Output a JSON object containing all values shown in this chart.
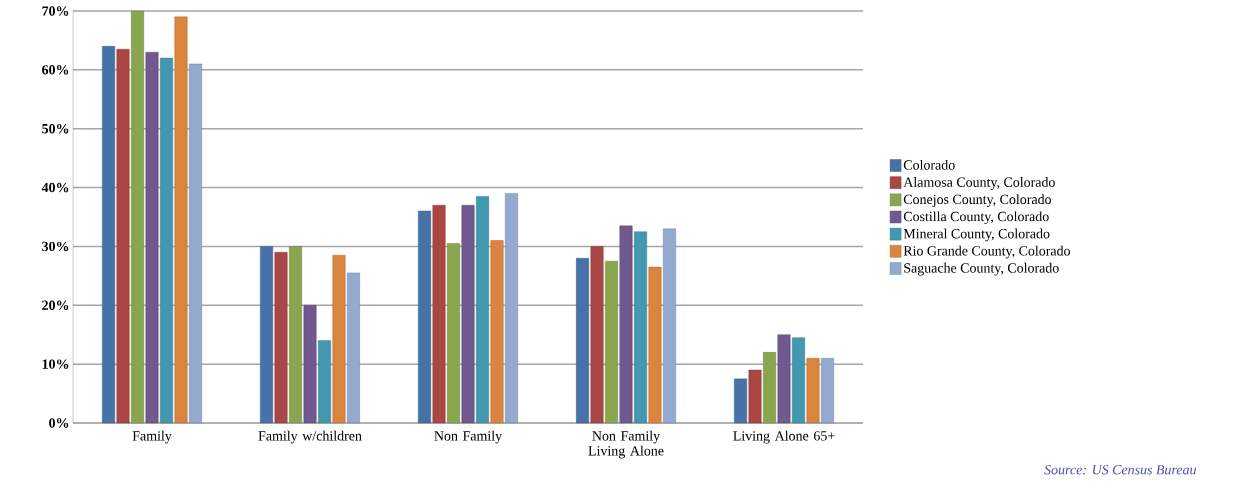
{
  "chart_data": {
    "type": "bar",
    "categories": [
      "Family",
      "Family w/children",
      "Non Family",
      "Non Family Living Alone",
      "Living Alone 65+"
    ],
    "series": [
      {
        "name": "Colorado",
        "color": "#4672a8",
        "values": [
          64,
          30,
          36,
          28,
          7.5
        ]
      },
      {
        "name": "Alamosa County, Colorado",
        "color": "#aa4643",
        "values": [
          63.5,
          29,
          37,
          30,
          9
        ]
      },
      {
        "name": "Conejos County, Colorado",
        "color": "#89a54e",
        "values": [
          70,
          30,
          30.5,
          27.5,
          12
        ]
      },
      {
        "name": "Costilla County, Colorado",
        "color": "#71588f",
        "values": [
          63,
          20,
          37,
          33.5,
          15
        ]
      },
      {
        "name": "Mineral County, Colorado",
        "color": "#4198af",
        "values": [
          62,
          14,
          38.5,
          32.5,
          14.5
        ]
      },
      {
        "name": "Rio Grande County, Colorado",
        "color": "#db843d",
        "values": [
          69,
          28.5,
          31,
          26.5,
          11
        ]
      },
      {
        "name": "Saguache County, Colorado",
        "color": "#93a9cf",
        "values": [
          61,
          25.5,
          39,
          33,
          11
        ]
      }
    ],
    "ylim": [
      0,
      70
    ],
    "yticks": [
      {
        "value": 0,
        "label": "0%"
      },
      {
        "value": 10,
        "label": "10%"
      },
      {
        "value": 20,
        "label": "20%"
      },
      {
        "value": 30,
        "label": "30%"
      },
      {
        "value": 40,
        "label": "40%"
      },
      {
        "value": 50,
        "label": "50%"
      },
      {
        "value": 60,
        "label": "60%"
      },
      {
        "value": 70,
        "label": "70%"
      }
    ],
    "grid": "y",
    "legend": "right",
    "annotations": [
      "Source: US Census Bureau"
    ]
  }
}
